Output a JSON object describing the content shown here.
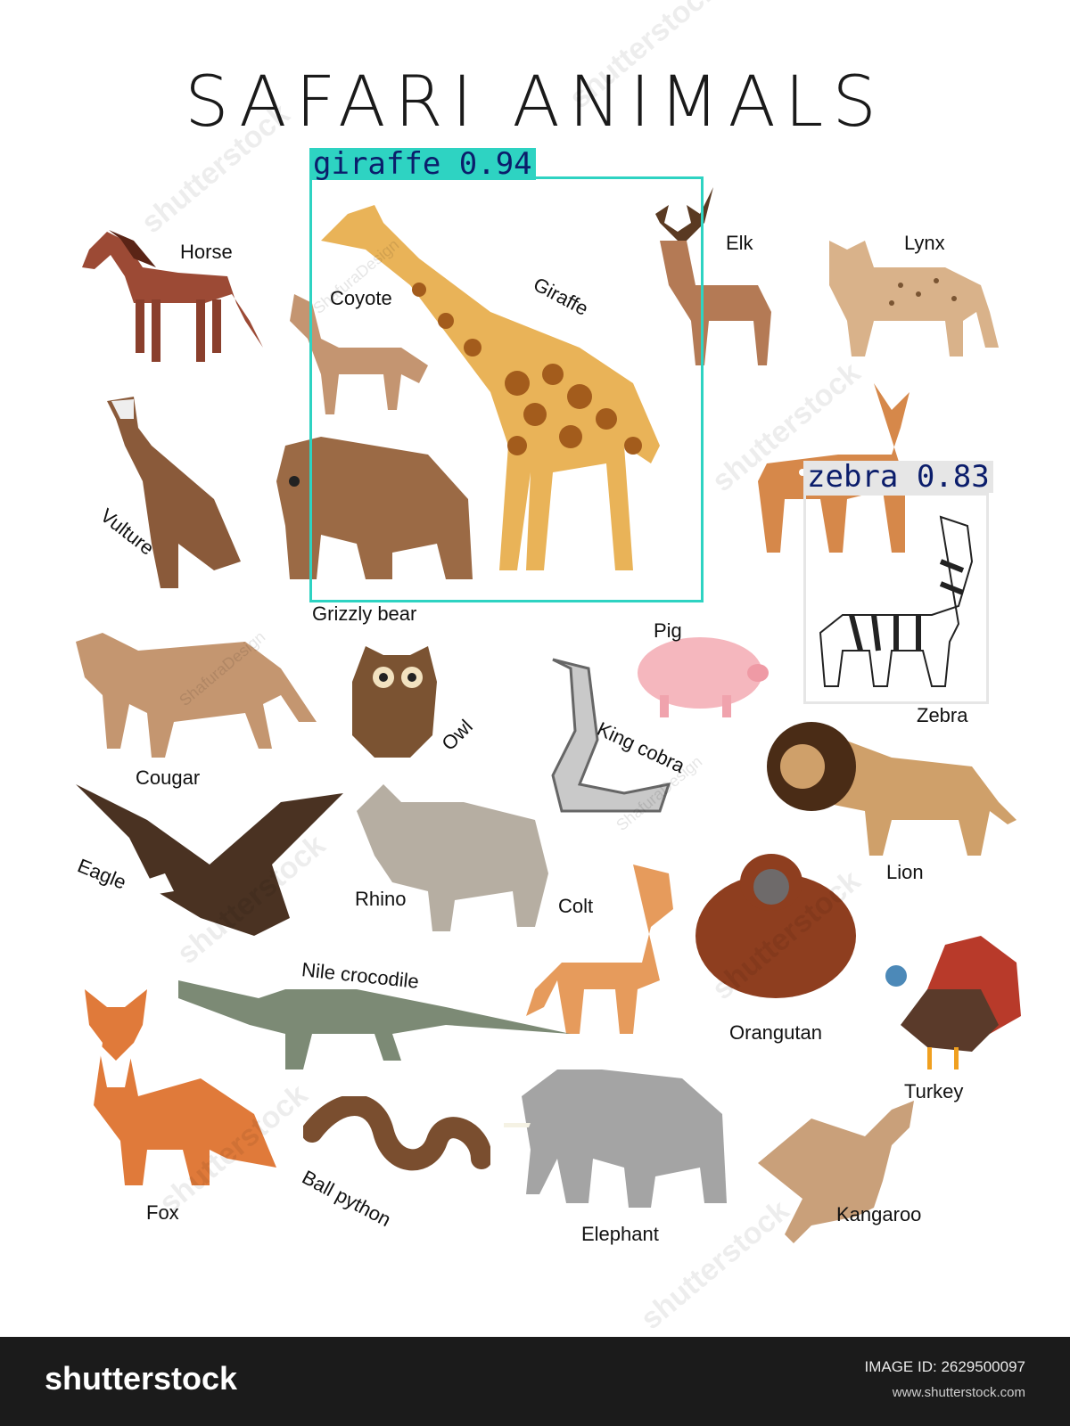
{
  "title": "SAFARI ANIMALS",
  "labels": {
    "horse": "Horse",
    "giraffe": "Giraffe",
    "coyote": "Coyote",
    "elk": "Elk",
    "lynx": "Lynx",
    "vulture": "Vulture",
    "grizzly": "Grizzly bear",
    "zebra": "Zebra",
    "cougar": "Cougar",
    "owl": "Owl",
    "pig": "Pig",
    "king_cobra": "King cobra",
    "lion": "Lion",
    "eagle": "Eagle",
    "rhino": "Rhino",
    "colt": "Colt",
    "orangutan": "Orangutan",
    "nile_crocodile": "Nile crocodile",
    "turkey": "Turkey",
    "fox": "Fox",
    "ball_python": "Ball python",
    "elephant": "Elephant",
    "kangaroo": "Kangaroo"
  },
  "detections": [
    {
      "label": "giraffe 0.94",
      "color": "#2ed3c2"
    },
    {
      "label": "zebra 0.83",
      "color": "#e6e6e6"
    }
  ],
  "watermarks": {
    "brand": "shutterstock",
    "artist": "ShafuraDesign"
  },
  "footer": {
    "logo": "shutterstock",
    "image_id": "IMAGE ID: 2629500097",
    "site": "www.shutterstock.com"
  }
}
